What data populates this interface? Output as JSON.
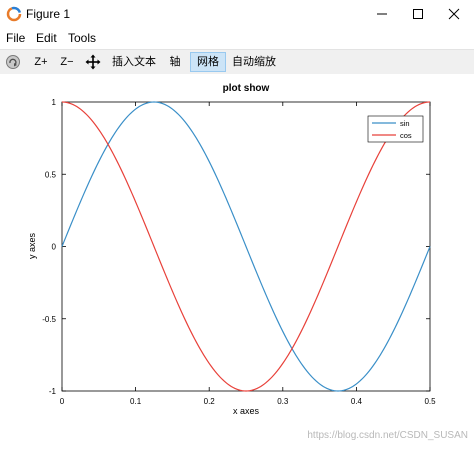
{
  "window": {
    "title": "Figure 1"
  },
  "menu": {
    "file": "File",
    "edit": "Edit",
    "tools": "Tools"
  },
  "toolbar": {
    "zoom_in": "Z+",
    "zoom_out": "Z−",
    "insert_text": "插入文本",
    "axis": "轴",
    "grid": "网格",
    "autoscale": "自动缩放"
  },
  "watermark": "https://blog.csdn.net/CSDN_SUSAN",
  "chart_data": {
    "type": "line",
    "title": "plot show",
    "xlabel": "x axes",
    "ylabel": "y axes",
    "xlim": [
      0,
      0.5
    ],
    "ylim": [
      -1,
      1
    ],
    "x_ticks": [
      0,
      0.1,
      0.2,
      0.3,
      0.4,
      0.5
    ],
    "x_tick_labels": [
      "0",
      "0.1",
      "0.2",
      "0.3",
      "0.4",
      "0.5"
    ],
    "y_ticks": [
      -1,
      -0.5,
      0,
      0.5,
      1
    ],
    "y_tick_labels": [
      "-1",
      "-0.5",
      "0",
      "0.5",
      "1"
    ],
    "grid": false,
    "legend_position": "top-right",
    "series": [
      {
        "name": "sin",
        "color": "#3a8fc8",
        "function": "sin(4*pi*x)"
      },
      {
        "name": "cos",
        "color": "#e8413a",
        "function": "cos(4*pi*x)"
      }
    ]
  }
}
